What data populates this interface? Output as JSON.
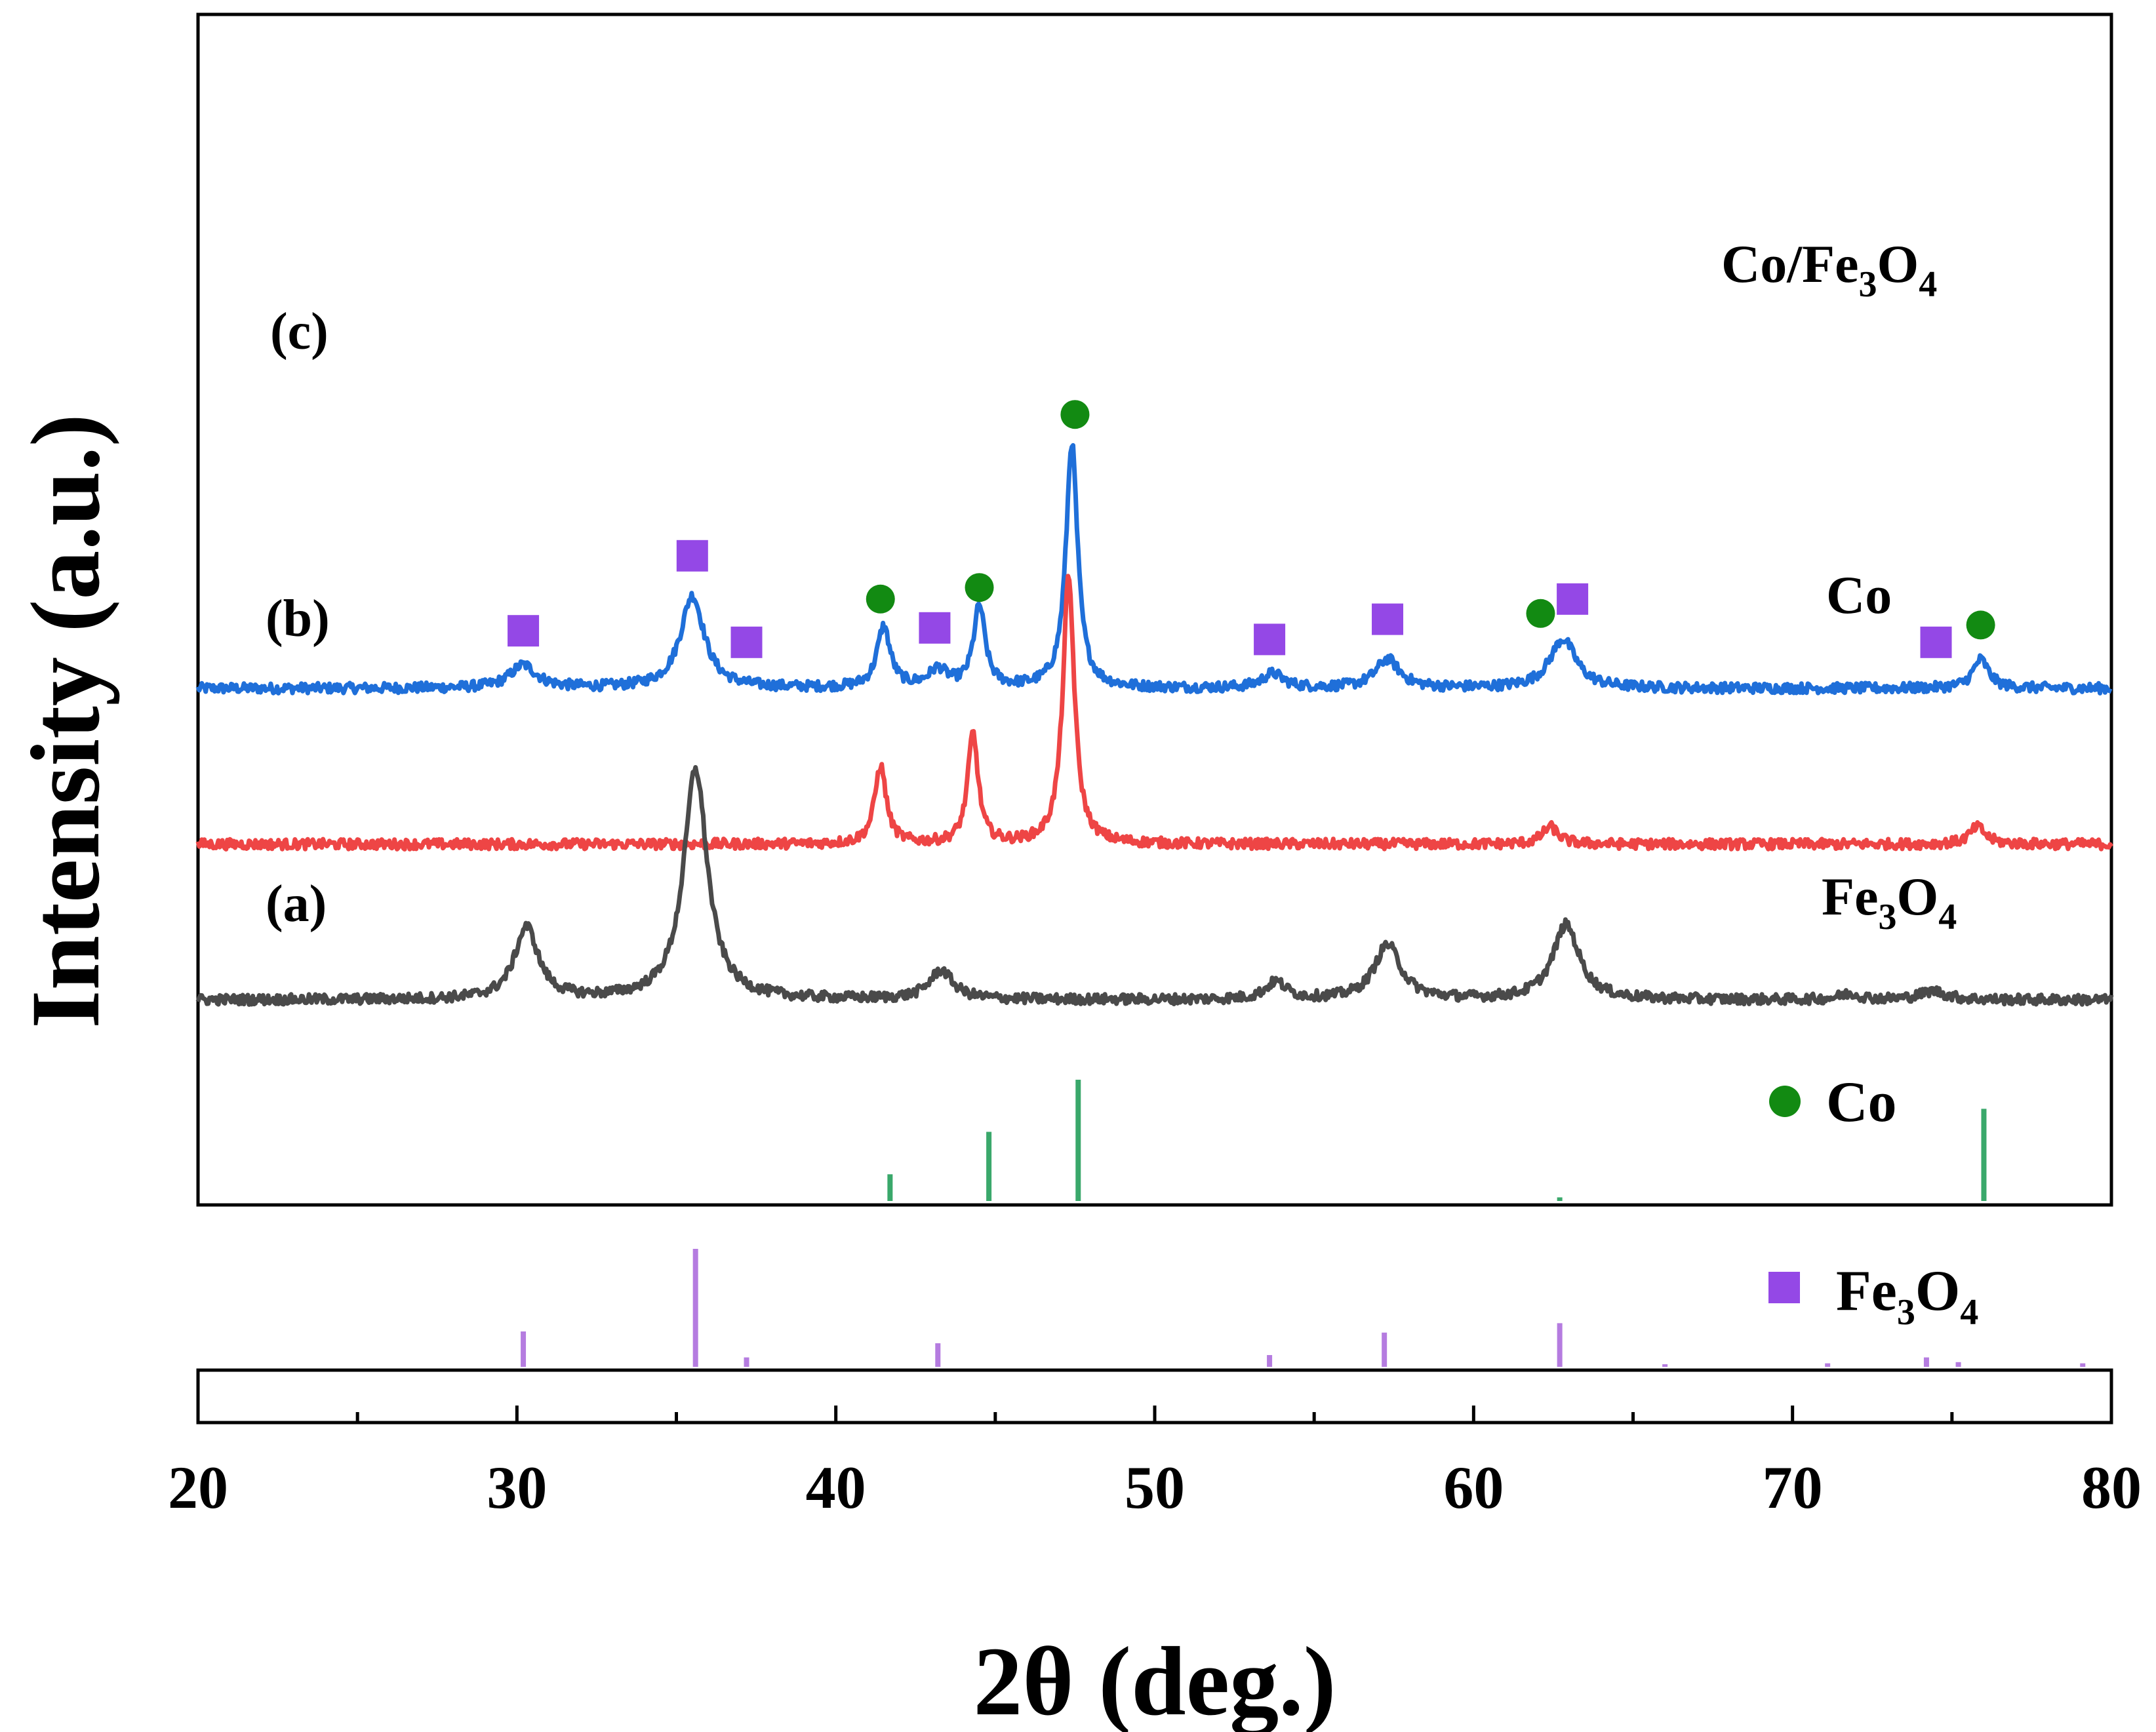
{
  "chart_data": {
    "type": "line",
    "title": "",
    "xlabel": "2θ (deg.)",
    "ylabel": "Intensity (a.u.)",
    "xlim": [
      20,
      80
    ],
    "xticks": [
      "20",
      "30",
      "40",
      "50",
      "60",
      "70",
      "80"
    ],
    "grid": false,
    "series": [
      {
        "key": "c",
        "curve_label": "(c)",
        "sample_label": "Co/Fe3O4",
        "color": "#1f6fd9",
        "offset": 0.92,
        "peaks": [
          {
            "x": 30.2,
            "h": 0.08,
            "w": 0.5
          },
          {
            "x": 35.5,
            "h": 0.32,
            "w": 0.45
          },
          {
            "x": 41.5,
            "h": 0.21,
            "w": 0.25
          },
          {
            "x": 43.2,
            "h": 0.06,
            "w": 0.35
          },
          {
            "x": 44.5,
            "h": 0.28,
            "w": 0.22
          },
          {
            "x": 47.4,
            "h": 0.85,
            "w": 0.22
          },
          {
            "x": 53.7,
            "h": 0.05,
            "w": 0.4
          },
          {
            "x": 57.3,
            "h": 0.1,
            "w": 0.45
          },
          {
            "x": 62.8,
            "h": 0.17,
            "w": 0.5
          },
          {
            "x": 75.9,
            "h": 0.1,
            "w": 0.3
          }
        ],
        "markers": [
          {
            "x": 30.2,
            "symbol": "square",
            "y": 1.12
          },
          {
            "x": 35.5,
            "symbol": "square",
            "y": 1.38
          },
          {
            "x": 37.2,
            "symbol": "square",
            "y": 1.08
          },
          {
            "x": 41.4,
            "symbol": "circle",
            "y": 1.23
          },
          {
            "x": 43.1,
            "symbol": "square",
            "y": 1.13
          },
          {
            "x": 44.5,
            "symbol": "circle",
            "y": 1.27
          },
          {
            "x": 47.5,
            "symbol": "circle",
            "y": 1.87
          },
          {
            "x": 53.6,
            "symbol": "square",
            "y": 1.09
          },
          {
            "x": 57.3,
            "symbol": "square",
            "y": 1.16
          },
          {
            "x": 62.1,
            "symbol": "circle",
            "y": 1.18
          },
          {
            "x": 63.1,
            "symbol": "square",
            "y": 1.23
          },
          {
            "x": 74.5,
            "symbol": "square",
            "y": 1.08
          },
          {
            "x": 75.9,
            "symbol": "circle",
            "y": 1.14
          }
        ]
      },
      {
        "key": "b",
        "curve_label": "(b)",
        "sample_label": "Co",
        "color": "#ee4545",
        "offset": 0.38,
        "peaks": [
          {
            "x": 41.4,
            "h": 0.27,
            "w": 0.22
          },
          {
            "x": 44.3,
            "h": 0.38,
            "w": 0.2
          },
          {
            "x": 47.3,
            "h": 0.92,
            "w": 0.22
          },
          {
            "x": 62.4,
            "h": 0.06,
            "w": 0.3
          },
          {
            "x": 75.8,
            "h": 0.06,
            "w": 0.3
          }
        ],
        "markers": []
      },
      {
        "key": "a",
        "curve_label": "(a)",
        "sample_label": "Fe3O4",
        "color": "#4a4a4a",
        "offset": -0.16,
        "peaks": [
          {
            "x": 30.3,
            "h": 0.25,
            "w": 0.45
          },
          {
            "x": 35.6,
            "h": 0.8,
            "w": 0.45
          },
          {
            "x": 43.3,
            "h": 0.1,
            "w": 0.45
          },
          {
            "x": 53.8,
            "h": 0.06,
            "w": 0.4
          },
          {
            "x": 57.3,
            "h": 0.19,
            "w": 0.5
          },
          {
            "x": 62.9,
            "h": 0.26,
            "w": 0.5
          },
          {
            "x": 71.8,
            "h": 0.02,
            "w": 0.4
          },
          {
            "x": 74.4,
            "h": 0.03,
            "w": 0.5
          }
        ],
        "markers": []
      }
    ],
    "reference_patterns": [
      {
        "name": "Co",
        "legend_symbol": "circle",
        "marker_color": "#128a12",
        "stick_color": "#3aa86b",
        "sticks": [
          {
            "x": 41.7,
            "i": 22
          },
          {
            "x": 44.8,
            "i": 57
          },
          {
            "x": 47.6,
            "i": 100
          },
          {
            "x": 62.7,
            "i": 3
          },
          {
            "x": 76.0,
            "i": 76
          }
        ]
      },
      {
        "name": "Fe3O4",
        "legend_symbol": "square",
        "marker_color": "#9448e6",
        "stick_color": "#b57ce0",
        "sticks": [
          {
            "x": 30.2,
            "i": 30
          },
          {
            "x": 35.6,
            "i": 100
          },
          {
            "x": 37.2,
            "i": 8
          },
          {
            "x": 43.2,
            "i": 20
          },
          {
            "x": 53.6,
            "i": 10
          },
          {
            "x": 57.2,
            "i": 29
          },
          {
            "x": 62.7,
            "i": 37
          },
          {
            "x": 66.0,
            "i": 1
          },
          {
            "x": 71.1,
            "i": 3
          },
          {
            "x": 74.2,
            "i": 8
          },
          {
            "x": 75.2,
            "i": 4
          },
          {
            "x": 79.1,
            "i": 3
          }
        ]
      }
    ]
  }
}
